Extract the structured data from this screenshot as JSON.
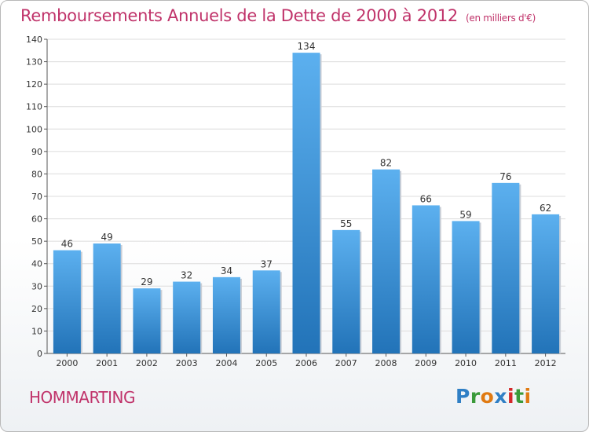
{
  "header": {
    "title": "Remboursements Annuels de la Dette de 2000 à 2012",
    "unit": "(en milliers d'€)"
  },
  "footer": {
    "commune": "HOMMARTING",
    "logo_text": "Proxiti",
    "logo_colors": [
      "#2f7fc5",
      "#3a9a3a",
      "#e07a12",
      "#2f7fc5",
      "#d4282a",
      "#3a9a3a",
      "#e07a12"
    ]
  },
  "chart_data": {
    "type": "bar",
    "title": "Remboursements Annuels de la Dette de 2000 à 2012",
    "subtitle": "(en milliers d'€)",
    "xlabel": "",
    "ylabel": "",
    "categories": [
      "2000",
      "2001",
      "2002",
      "2003",
      "2004",
      "2005",
      "2006",
      "2007",
      "2008",
      "2009",
      "2010",
      "2011",
      "2012"
    ],
    "values": [
      46,
      49,
      29,
      32,
      34,
      37,
      134,
      55,
      82,
      66,
      59,
      76,
      62
    ],
    "ylim": [
      0,
      140
    ],
    "yticks": [
      0,
      10,
      20,
      30,
      40,
      50,
      60,
      70,
      80,
      90,
      100,
      110,
      120,
      130,
      140
    ],
    "grid": true,
    "legend": "none",
    "bar_color": "#3b93d8"
  }
}
